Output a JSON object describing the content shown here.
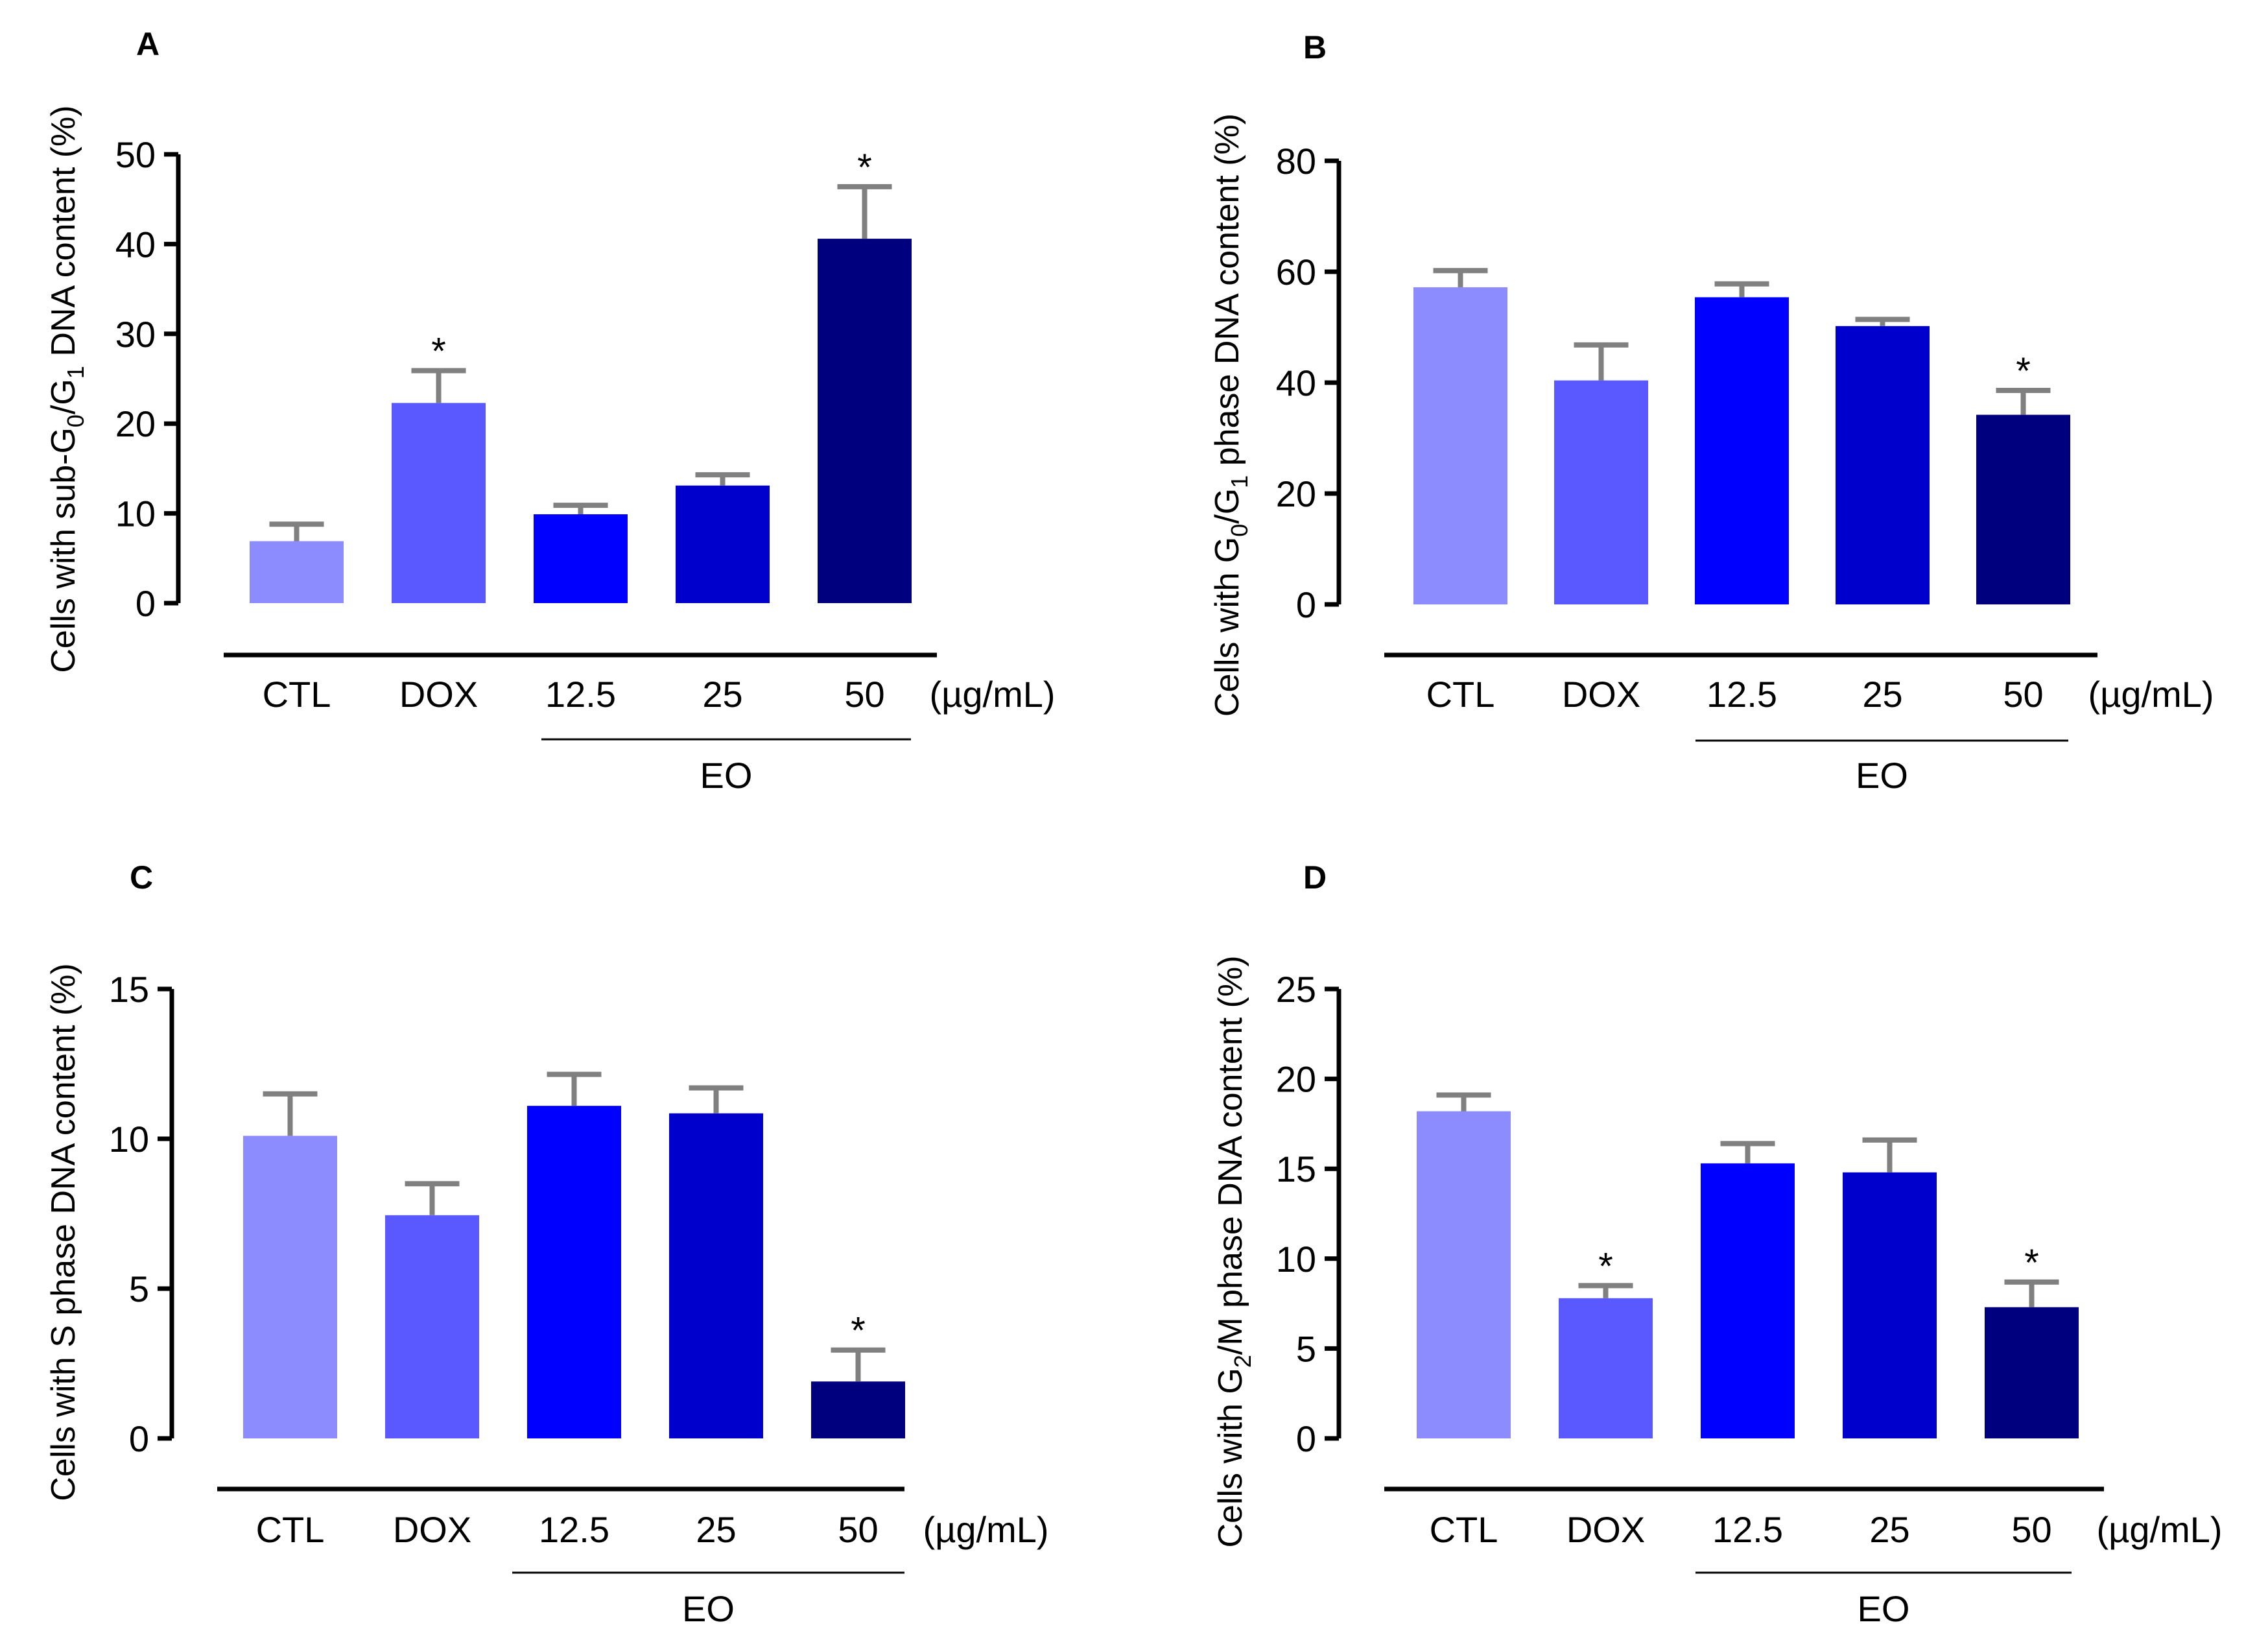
{
  "chart_data": [
    {
      "panel": "A",
      "type": "bar",
      "ylabel_parts": [
        {
          "t": "Cells with sub-G",
          "sub": false
        },
        {
          "t": "0",
          "sub": true
        },
        {
          "t": "/G",
          "sub": false
        },
        {
          "t": "1",
          "sub": true
        },
        {
          "t": " DNA content (%)",
          "sub": false
        }
      ],
      "categories": [
        "CTL",
        "DOX",
        "12.5",
        "25",
        "50"
      ],
      "values": [
        6.9,
        22.3,
        9.9,
        13.1,
        40.6
      ],
      "errors": [
        1.9,
        3.6,
        1.0,
        1.2,
        5.8
      ],
      "significant": [
        false,
        true,
        false,
        false,
        true
      ],
      "ylim": [
        0,
        50
      ],
      "yticks": [
        0,
        10,
        20,
        30,
        40,
        50
      ],
      "unit": "(µg/mL)",
      "group_label": "EO",
      "star": "*",
      "colors": [
        "#8c8cff",
        "#5959ff",
        "#0000ff",
        "#0000cc",
        "#00007f"
      ]
    },
    {
      "panel": "B",
      "type": "bar",
      "ylabel_parts": [
        {
          "t": "Cells with G",
          "sub": false
        },
        {
          "t": "0",
          "sub": true
        },
        {
          "t": "/G",
          "sub": false
        },
        {
          "t": "1",
          "sub": true
        },
        {
          "t": " phase DNA content (%)",
          "sub": false
        }
      ],
      "categories": [
        "CTL",
        "DOX",
        "12.5",
        "25",
        "50"
      ],
      "values": [
        57.2,
        40.4,
        55.4,
        50.2,
        34.2
      ],
      "errors": [
        3.0,
        6.4,
        2.4,
        1.2,
        4.4
      ],
      "significant": [
        false,
        false,
        false,
        false,
        true
      ],
      "ylim": [
        0,
        80
      ],
      "yticks": [
        0,
        20,
        40,
        60,
        80
      ],
      "unit": "(µg/mL)",
      "group_label": "EO",
      "star": "*",
      "colors": [
        "#8c8cff",
        "#5959ff",
        "#0000ff",
        "#0000cc",
        "#00007f"
      ]
    },
    {
      "panel": "C",
      "type": "bar",
      "ylabel_parts": [
        {
          "t": "Cells with S phase DNA content (%)",
          "sub": false
        }
      ],
      "categories": [
        "CTL",
        "DOX",
        "12.5",
        "25",
        "50"
      ],
      "values": [
        10.1,
        7.45,
        11.1,
        10.85,
        1.9
      ],
      "errors": [
        1.4,
        1.05,
        1.05,
        0.85,
        1.05
      ],
      "significant": [
        false,
        false,
        false,
        false,
        true
      ],
      "ylim": [
        0,
        15
      ],
      "yticks": [
        0,
        5,
        10,
        15
      ],
      "unit": "(µg/mL)",
      "group_label": "EO",
      "star": "*",
      "colors": [
        "#8c8cff",
        "#5959ff",
        "#0000ff",
        "#0000cc",
        "#00007f"
      ]
    },
    {
      "panel": "D",
      "type": "bar",
      "ylabel_parts": [
        {
          "t": "Cells with G",
          "sub": false
        },
        {
          "t": "2",
          "sub": true
        },
        {
          "t": "/M phase DNA content (%)",
          "sub": false
        }
      ],
      "categories": [
        "CTL",
        "DOX",
        "12.5",
        "25",
        "50"
      ],
      "values": [
        18.2,
        7.8,
        15.3,
        14.8,
        7.3
      ],
      "errors": [
        0.9,
        0.7,
        1.1,
        1.8,
        1.4
      ],
      "significant": [
        false,
        true,
        false,
        false,
        true
      ],
      "ylim": [
        0,
        25
      ],
      "yticks": [
        0,
        5,
        10,
        15,
        20,
        25
      ],
      "unit": "(µg/mL)",
      "group_label": "EO",
      "star": "*",
      "colors": [
        "#8c8cff",
        "#5959ff",
        "#0000ff",
        "#0000cc",
        "#00007f"
      ]
    }
  ]
}
